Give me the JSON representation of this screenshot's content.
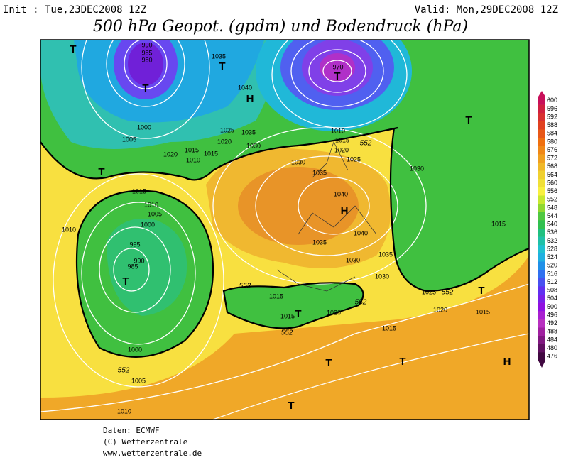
{
  "header": {
    "init": "Init : Tue,23DEC2008 12Z",
    "valid": "Valid: Mon,29DEC2008 12Z",
    "title": "500 hPa Geopot. (gpdm) und Bodendruck (hPa)"
  },
  "legend": {
    "levels": [
      600,
      596,
      592,
      588,
      584,
      580,
      576,
      572,
      568,
      564,
      560,
      556,
      552,
      548,
      544,
      540,
      536,
      532,
      528,
      524,
      520,
      516,
      512,
      508,
      504,
      500,
      496,
      492,
      488,
      484,
      480,
      476
    ],
    "colors": [
      "#c8105a",
      "#d02040",
      "#d83030",
      "#e04020",
      "#e85818",
      "#f07010",
      "#f08818",
      "#f0a020",
      "#f0b828",
      "#f0d030",
      "#f0e038",
      "#f8f040",
      "#c8e830",
      "#90d830",
      "#50c840",
      "#30c050",
      "#20c080",
      "#20c0a8",
      "#20c0d0",
      "#20b0e0",
      "#2090e8",
      "#3070f0",
      "#4850f0",
      "#6030f0",
      "#7820e8",
      "#9010e0",
      "#a820d0",
      "#b830c0",
      "#a020a0",
      "#801880",
      "#601060",
      "#400840"
    ]
  },
  "isobar_labels": [
    990,
    985,
    980,
    1035,
    970,
    1040,
    1000,
    1005,
    1025,
    1035,
    1020,
    1030,
    1015,
    1015,
    1020,
    1010,
    1010,
    1015,
    1020,
    1025,
    1030,
    1030,
    1035,
    1040,
    1015,
    1010,
    1005,
    1000,
    995,
    990,
    985,
    1010,
    1040,
    1035,
    1035,
    1030,
    1030,
    1015,
    1015,
    1020,
    1025,
    1020,
    1015,
    1015,
    1000,
    1005,
    1010,
    1015
  ],
  "contour_labels": [
    552,
    552,
    552,
    552,
    552,
    552
  ],
  "centers": [
    "T",
    "T",
    "T",
    "H",
    "T",
    "T",
    "T",
    "T",
    "H",
    "T",
    "T",
    "T",
    "T",
    "H",
    "T"
  ],
  "footer": {
    "source": "Daten: ECMWF",
    "copyright": "(C) Wetterzentrale",
    "url": "www.wetterzentrale.de"
  }
}
